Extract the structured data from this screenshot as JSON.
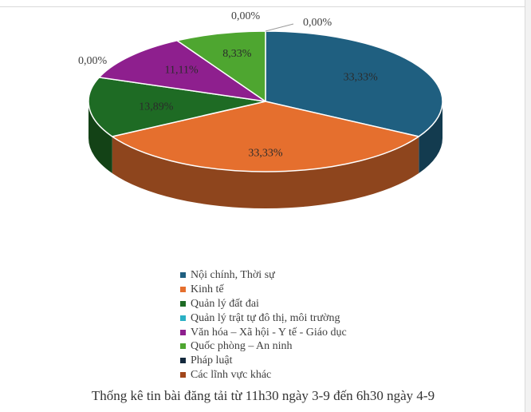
{
  "chart_data": {
    "type": "pie",
    "style": "3d-tilted",
    "categories": [
      "Nội chính, Thời sự",
      "Kinh tế",
      "Quản lý đất đai",
      "Quản lý trật tự đô thị, môi trường",
      "Văn hóa – Xã hội - Y tế - Giáo dục",
      "Quốc phòng – An ninh",
      "Pháp luật",
      "Các lĩnh vực khác"
    ],
    "values": [
      33.33,
      33.33,
      13.89,
      0.0,
      11.11,
      8.33,
      0.0,
      0.0
    ],
    "data_labels": [
      "33,33%",
      "33,33%",
      "13,89%",
      "0,00%",
      "11,11%",
      "8,33%",
      "0,00%",
      "0,00%"
    ],
    "colors": [
      "#1f5f80",
      "#e56f2e",
      "#1e6b24",
      "#2ab0c4",
      "#8e1f8e",
      "#4ea630",
      "#14293d",
      "#a1461b"
    ],
    "legend_position": "bottom",
    "caption": "Thống kê tin bài đăng tải từ 11h30 ngày 3-9 đến 6h30 ngày 4-9"
  }
}
